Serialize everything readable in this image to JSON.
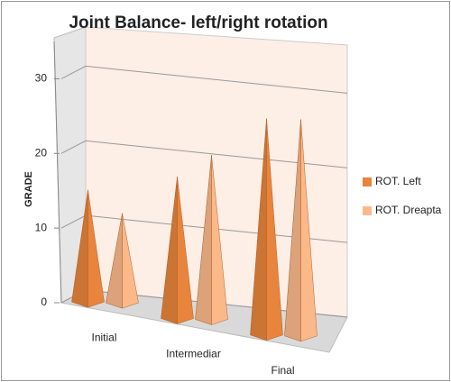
{
  "chart_data": {
    "type": "pyramid3d",
    "title": "Joint Balance- left/right rotation",
    "y_label": "GRADE",
    "categories": [
      "Initial",
      "Intermediar",
      "Final"
    ],
    "series": [
      {
        "name": "ROT. Left",
        "color": "#e8843c",
        "values": [
          15,
          19,
          29
        ]
      },
      {
        "name": "ROT. Dreapta",
        "color": "#fbb98a",
        "values": [
          12,
          22,
          29
        ]
      }
    ],
    "ylim": [
      0,
      35
    ],
    "yticks": [
      0,
      10,
      20,
      30
    ],
    "grid": true,
    "legend": "right"
  }
}
